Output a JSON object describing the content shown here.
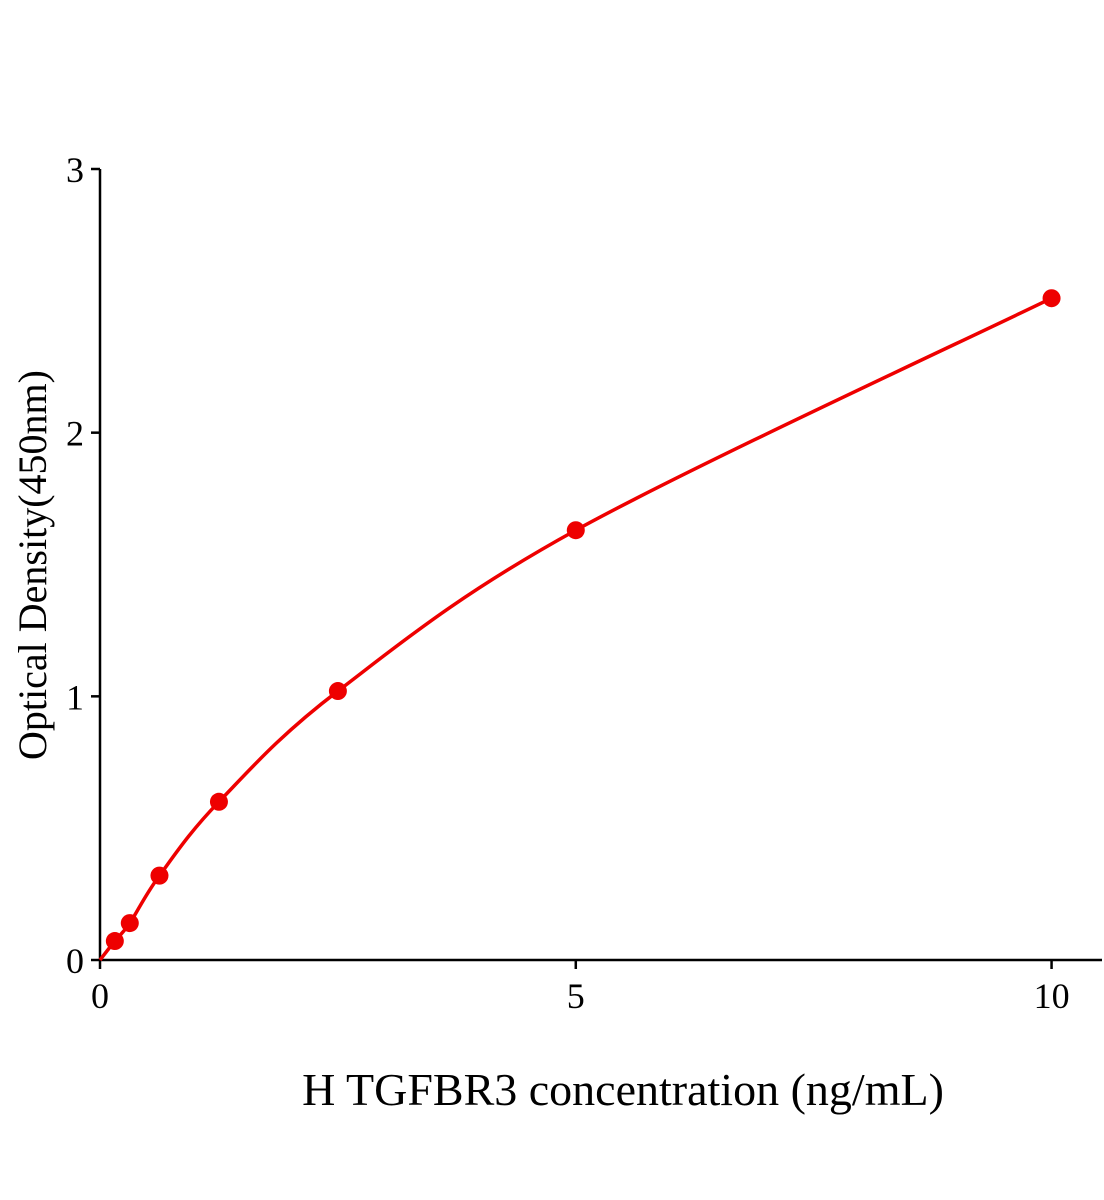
{
  "chart_data": {
    "type": "scatter",
    "x_label": "H TGFBR3 concentration (ng/mL)",
    "y_label": "Optical Density(450nm)",
    "series": [
      {
        "color": "#ee0000",
        "x": [
          0.156,
          0.313,
          0.625,
          1.25,
          2.5,
          5,
          10
        ],
        "values": [
          0.072,
          0.14,
          0.32,
          0.6,
          1.02,
          1.63,
          2.51
        ]
      }
    ],
    "xlim": [
      0,
      10.53
    ],
    "ylim": [
      0,
      3
    ],
    "xticks": [
      0,
      5,
      10
    ],
    "yticks": [
      0,
      1,
      2,
      3
    ],
    "curve": true
  }
}
